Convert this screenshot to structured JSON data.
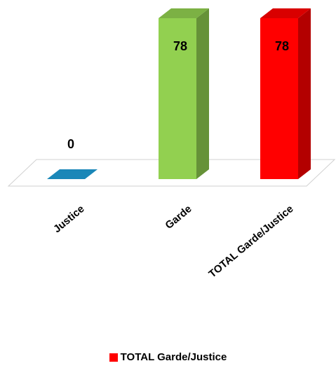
{
  "chart_data": {
    "type": "bar",
    "categories": [
      "Justice",
      "Garde",
      "TOTAL Garde/Justice"
    ],
    "values": [
      0,
      78,
      78
    ],
    "colors": [
      "#1a87b8",
      "#92d050",
      "#ff0000"
    ],
    "data_labels": [
      "0",
      "78",
      "78"
    ],
    "legend": {
      "position": "bottom",
      "entries": [
        {
          "label": "TOTAL Garde/Justice",
          "color": "#ff0000"
        }
      ]
    },
    "ylim": [
      0,
      78
    ],
    "grid": false,
    "three_d": true
  }
}
